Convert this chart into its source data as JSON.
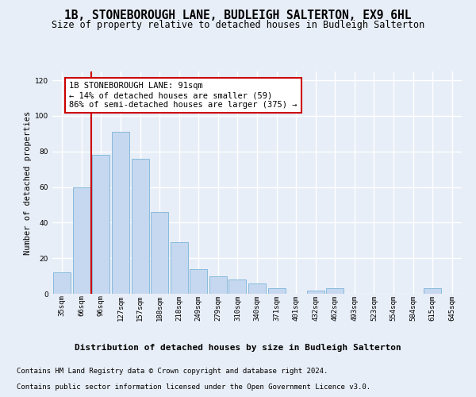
{
  "title": "1B, STONEBOROUGH LANE, BUDLEIGH SALTERTON, EX9 6HL",
  "subtitle": "Size of property relative to detached houses in Budleigh Salterton",
  "xlabel": "Distribution of detached houses by size in Budleigh Salterton",
  "ylabel": "Number of detached properties",
  "footer_line1": "Contains HM Land Registry data © Crown copyright and database right 2024.",
  "footer_line2": "Contains public sector information licensed under the Open Government Licence v3.0.",
  "categories": [
    "35sqm",
    "66sqm",
    "96sqm",
    "127sqm",
    "157sqm",
    "188sqm",
    "218sqm",
    "249sqm",
    "279sqm",
    "310sqm",
    "340sqm",
    "371sqm",
    "401sqm",
    "432sqm",
    "462sqm",
    "493sqm",
    "523sqm",
    "554sqm",
    "584sqm",
    "615sqm",
    "645sqm"
  ],
  "values": [
    12,
    60,
    78,
    91,
    76,
    46,
    29,
    14,
    10,
    8,
    6,
    3,
    0,
    2,
    3,
    0,
    0,
    0,
    0,
    3,
    0
  ],
  "bar_color": "#c5d8f0",
  "bar_edge_color": "#7ab4d8",
  "vline_color": "#cc0000",
  "vline_x_index": 1.5,
  "annotation_box_text": "1B STONEBOROUGH LANE: 91sqm\n← 14% of detached houses are smaller (59)\n86% of semi-detached houses are larger (375) →",
  "box_color": "white",
  "box_edge_color": "#cc0000",
  "ylim": [
    0,
    125
  ],
  "yticks": [
    0,
    20,
    40,
    60,
    80,
    100,
    120
  ],
  "bg_color": "#e8eef7",
  "plot_bg_color": "#e8eef7",
  "grid_color": "white",
  "title_fontsize": 10.5,
  "subtitle_fontsize": 8.5,
  "xlabel_fontsize": 8,
  "ylabel_fontsize": 7.5,
  "tick_fontsize": 6.5,
  "annotation_fontsize": 7.5,
  "footer_fontsize": 6.5
}
